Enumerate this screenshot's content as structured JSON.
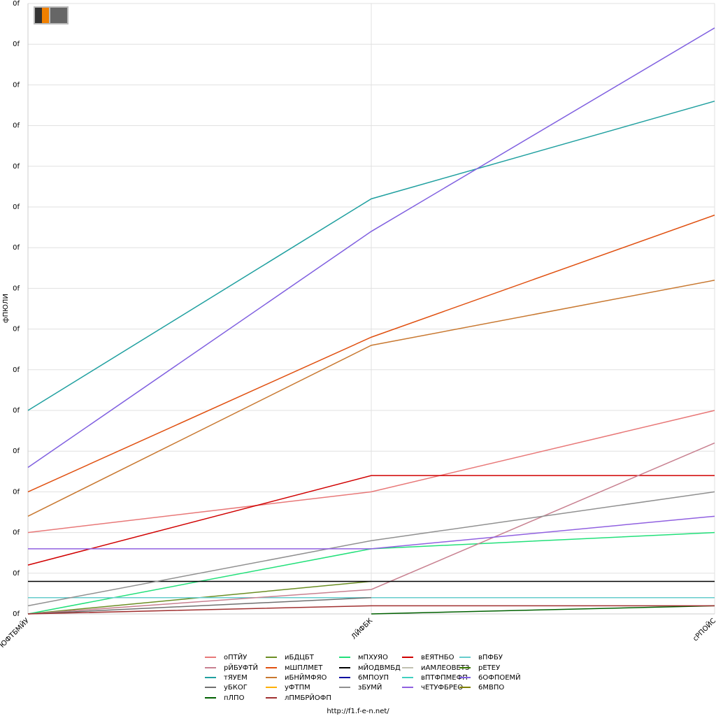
{
  "chart_data": {
    "type": "line",
    "y_label": "фПЮЛИ",
    "footer": "http://f1.f-e-n.net/",
    "categories": [
      "ЮФТБМЙУ",
      "ЛЙФБК",
      "сРПОЙС"
    ],
    "ylim": [
      0,
      15
    ],
    "yticks": [
      {
        "value": 0,
        "label": "0f"
      },
      {
        "value": 1,
        "label": "0f"
      },
      {
        "value": 2,
        "label": "0f"
      },
      {
        "value": 3,
        "label": "0f"
      },
      {
        "value": 4,
        "label": "0f"
      },
      {
        "value": 5,
        "label": "0f"
      },
      {
        "value": 6,
        "label": "0f"
      },
      {
        "value": 7,
        "label": "0f"
      },
      {
        "value": 8,
        "label": "0f"
      },
      {
        "value": 9,
        "label": "0f"
      },
      {
        "value": 10,
        "label": "0f"
      },
      {
        "value": 11,
        "label": "0f"
      },
      {
        "value": 12,
        "label": "0f"
      },
      {
        "value": 13,
        "label": "0f"
      },
      {
        "value": 14,
        "label": "0f"
      },
      {
        "value": 15,
        "label": "0f"
      }
    ],
    "grid": true,
    "series": [
      {
        "name": "оПТЙУ",
        "color": "#e87878",
        "values": [
          2.0,
          3.0,
          5.0
        ]
      },
      {
        "name": "иБДЦБТ",
        "color": "#6b8e23",
        "values": [
          0,
          0.8,
          null
        ]
      },
      {
        "name": "мПХУЯО",
        "color": "#22e07a",
        "values": [
          0,
          1.6,
          2.0
        ]
      },
      {
        "name": "вЕЯТНБО",
        "color": "#d00000",
        "values": [
          1.2,
          3.4,
          3.4
        ]
      },
      {
        "name": "вПФБУ",
        "color": "#66cccc",
        "values": [
          0.4,
          0.4,
          0.4
        ]
      },
      {
        "name": "рЙБУФТЙ",
        "color": "#c88090",
        "values": [
          0,
          0.6,
          4.2
        ]
      },
      {
        "name": "мШПЛМЕТ",
        "color": "#e05010",
        "values": [
          3.0,
          6.8,
          9.8
        ]
      },
      {
        "name": "мЙОДВМБД",
        "color": "#000000",
        "values": [
          0.8,
          0.8,
          0.8
        ]
      },
      {
        "name": "иАМЛЕОВЕТЗ",
        "color": "#c0c0b0",
        "values": [
          null,
          null,
          null
        ]
      },
      {
        "name": "рЕТЕУ",
        "color": "#3a7a00",
        "values": [
          null,
          null,
          null
        ]
      },
      {
        "name": "тЯУЕМ",
        "color": "#20a0a0",
        "values": [
          5.0,
          10.2,
          12.6
        ]
      },
      {
        "name": "иБНЙМФЯО",
        "color": "#c87830",
        "values": [
          2.4,
          6.6,
          8.2
        ]
      },
      {
        "name": "6МПОУП",
        "color": "#0000a0",
        "values": [
          null,
          null,
          null
        ]
      },
      {
        "name": "вПТФПМЕФП",
        "color": "#40d0c0",
        "values": [
          null,
          null,
          null
        ]
      },
      {
        "name": "6ОФПОЕМЙ",
        "color": "#8060e0",
        "values": [
          3.6,
          9.4,
          14.4
        ]
      },
      {
        "name": "уБКОГ",
        "color": "#707070",
        "values": [
          0,
          0.4,
          null
        ]
      },
      {
        "name": "уФТПМ",
        "color": "#ffb000",
        "values": [
          null,
          null,
          null
        ]
      },
      {
        "name": "зБУМЙ",
        "color": "#909090",
        "values": [
          0.2,
          1.8,
          3.0
        ]
      },
      {
        "name": "чЕТУФБРЕО",
        "color": "#9060e0",
        "values": [
          1.6,
          1.6,
          2.4
        ]
      },
      {
        "name": "6МВПО",
        "color": "#808000",
        "values": [
          null,
          null,
          null
        ]
      },
      {
        "name": "пЛПО",
        "color": "#006000",
        "values": [
          null,
          0,
          0.2
        ]
      },
      {
        "name": "лПМБРЙОФП",
        "color": "#a03030",
        "values": [
          0,
          0.2,
          0.2
        ]
      }
    ]
  }
}
